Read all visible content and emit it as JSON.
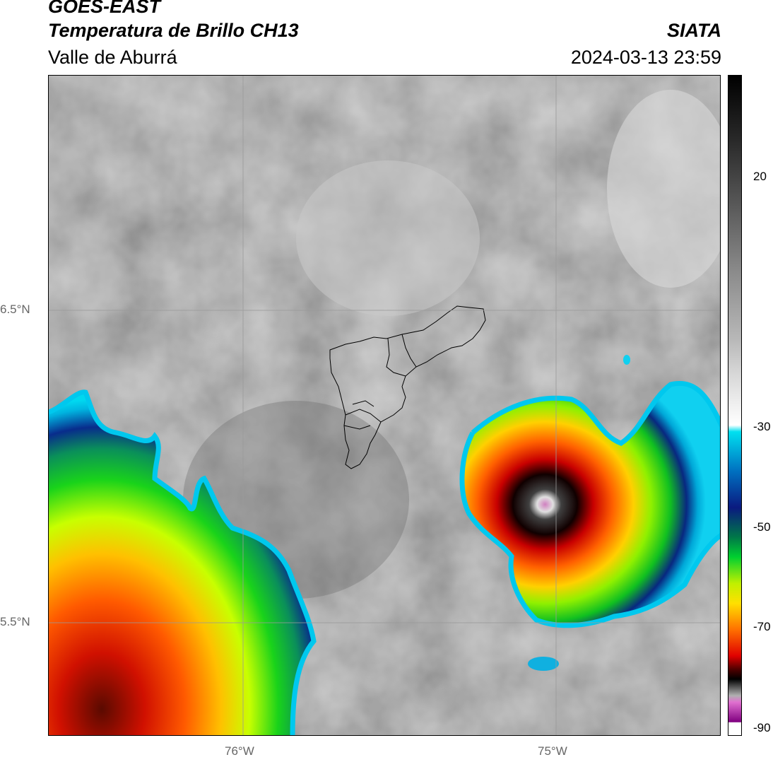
{
  "header": {
    "title": "GOES-EAST",
    "subtitle": "Temperatura de Brillo CH13",
    "region": "Valle de Aburrá",
    "organization": "SIATA",
    "timestamp": "2024-03-13 23:59"
  },
  "axes": {
    "lat_labels": [
      "6.5°N",
      "5.5°N"
    ],
    "lon_labels": [
      "76°W",
      "75°W"
    ]
  },
  "colorbar": {
    "tick_labels": [
      "20",
      "-30",
      "-50",
      "-70",
      "-90"
    ]
  }
}
